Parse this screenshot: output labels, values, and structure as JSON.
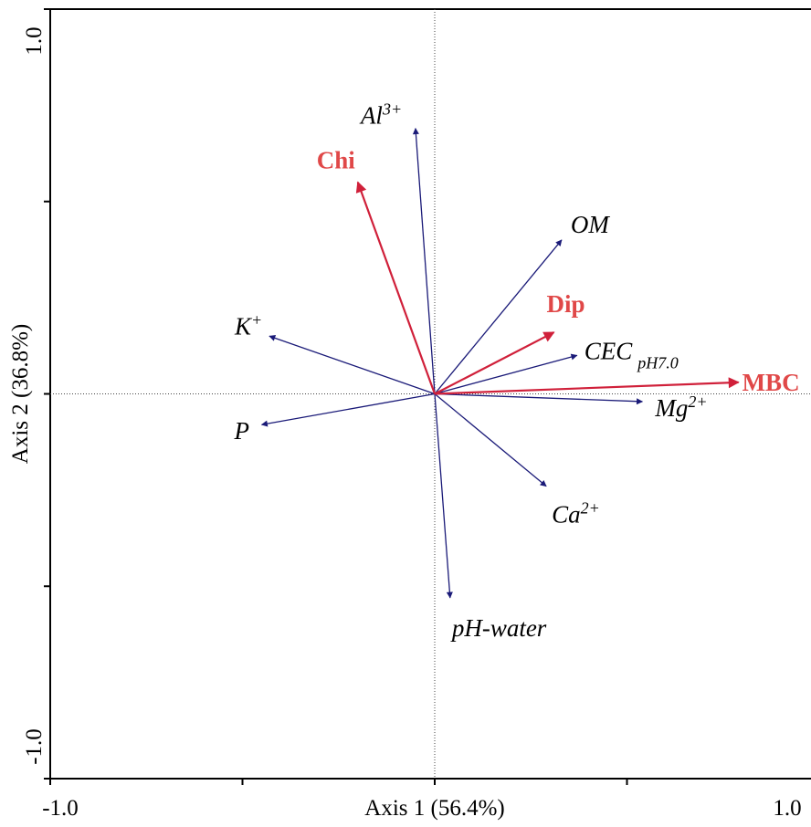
{
  "chart_data": {
    "type": "biplot",
    "xlabel": "Axis 1 (56.4%)",
    "ylabel": "Axis 2 (36.8%)",
    "xlim": [
      -1.0,
      1.0
    ],
    "ylim": [
      -1.0,
      1.0
    ],
    "x_tick_labels": [
      {
        "value": -1.0,
        "label": "-1.0"
      },
      {
        "value": 1.0,
        "label": "1.0"
      }
    ],
    "y_tick_labels": [
      {
        "value": 1.0,
        "label": "1.0"
      },
      {
        "value": -1.0,
        "label": "-1.0"
      }
    ],
    "x_ticks": [
      -1.0,
      -0.5,
      0.0,
      0.5,
      1.0
    ],
    "y_ticks": [
      -1.0,
      -0.5,
      0.0,
      0.5,
      1.0
    ],
    "environmental_vectors": [
      {
        "name": "Al",
        "sup": "3+",
        "sub": "",
        "x": -0.05,
        "y": 0.69,
        "color": "#1a1a78"
      },
      {
        "name": "OM",
        "sup": "",
        "sub": "",
        "x": 0.33,
        "y": 0.4,
        "color": "#1a1a78"
      },
      {
        "name": "CEC",
        "sup": "",
        "sub": "pH7.0",
        "x": 0.37,
        "y": 0.1,
        "color": "#1a1a78"
      },
      {
        "name": "K",
        "sup": "+",
        "sub": "",
        "x": -0.43,
        "y": 0.15,
        "color": "#1a1a78"
      },
      {
        "name": "P",
        "sup": "",
        "sub": "",
        "x": -0.45,
        "y": -0.08,
        "color": "#1a1a78"
      },
      {
        "name": "Mg",
        "sup": "2+",
        "sub": "",
        "x": 0.54,
        "y": -0.02,
        "color": "#1a1a78"
      },
      {
        "name": "Ca",
        "sup": "2+",
        "sub": "",
        "x": 0.29,
        "y": -0.24,
        "color": "#1a1a78"
      },
      {
        "name": "pH-water",
        "sup": "",
        "sub": "",
        "x": 0.04,
        "y": -0.53,
        "color": "#1a1a78"
      }
    ],
    "species_vectors": [
      {
        "name": "Chi",
        "x": -0.2,
        "y": 0.55,
        "color": "#d0203a",
        "label_color": "#e04848"
      },
      {
        "name": "Dip",
        "x": 0.31,
        "y": 0.16,
        "color": "#d0203a",
        "label_color": "#e04848"
      },
      {
        "name": "MBC",
        "x": 0.79,
        "y": 0.03,
        "color": "#d0203a",
        "label_color": "#e04848"
      }
    ]
  }
}
